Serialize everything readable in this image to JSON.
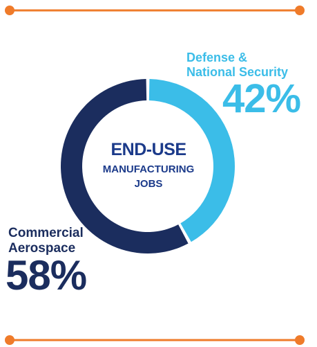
{
  "colors": {
    "accent_orange": "#ef7b2a",
    "navy": "#1b2d5e",
    "sky": "#3bbde8",
    "center_text": "#1b3a8a"
  },
  "center": {
    "line1": "END-USE",
    "line2": "MANUFACTURING",
    "line3": "JOBS"
  },
  "chart_data": {
    "type": "pie",
    "title": "END-USE MANUFACTURING JOBS",
    "categories": [
      "Defense & National Security",
      "Commercial Aerospace"
    ],
    "values": [
      42,
      58
    ],
    "colors": [
      "#3bbde8",
      "#1b2d5e"
    ]
  },
  "labels": {
    "defense_line1": "Defense &",
    "defense_line2": "National Security",
    "defense_pct": "42%",
    "commercial_line1": "Commercial",
    "commercial_line2": "Aerospace",
    "commercial_pct": "58%"
  }
}
